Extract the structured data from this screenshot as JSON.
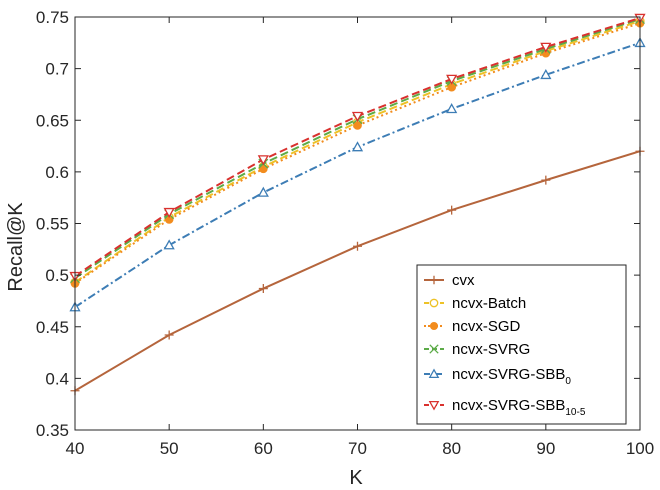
{
  "chart_data": {
    "type": "line",
    "title": "",
    "xlabel": "K",
    "ylabel": "Recall@K",
    "xlim": [
      40,
      100
    ],
    "ylim": [
      0.35,
      0.75
    ],
    "xticks": [
      "40",
      "50",
      "60",
      "70",
      "80",
      "90",
      "100"
    ],
    "yticks": [
      "0.35",
      "0.4",
      "0.45",
      "0.5",
      "0.55",
      "0.6",
      "0.65",
      "0.7",
      "0.75"
    ],
    "x": [
      40,
      50,
      60,
      70,
      80,
      90,
      100
    ],
    "legend_position": "bottom-right",
    "series": [
      {
        "name": "cvx",
        "color": "#B5653C",
        "dash": "solid",
        "marker": "plus",
        "values": [
          0.388,
          0.442,
          0.487,
          0.528,
          0.563,
          0.592,
          0.62
        ]
      },
      {
        "name": "ncvx-Batch",
        "color": "#EDC227",
        "dash": "dashed",
        "marker": "circle",
        "values": [
          0.493,
          0.556,
          0.605,
          0.648,
          0.685,
          0.717,
          0.746
        ]
      },
      {
        "name": "ncvx-SGD",
        "color": "#F28C1E",
        "dash": "dotted",
        "marker": "filled-circle",
        "values": [
          0.492,
          0.554,
          0.603,
          0.645,
          0.682,
          0.715,
          0.744
        ]
      },
      {
        "name": "ncvx-SVRG",
        "color": "#5CAB48",
        "dash": "dashed",
        "marker": "x",
        "values": [
          0.497,
          0.559,
          0.608,
          0.651,
          0.688,
          0.719,
          0.748
        ]
      },
      {
        "name": "ncvx-SVRG-SBB",
        "name_sub": "0",
        "color": "#3D7DB5",
        "dash": "dashdot",
        "marker": "triangle-up",
        "values": [
          0.469,
          0.529,
          0.58,
          0.624,
          0.661,
          0.694,
          0.725
        ]
      },
      {
        "name": "ncvx-SVRG-SBB",
        "name_sub": "10-5",
        "color": "#D9312E",
        "dash": "dashed",
        "marker": "triangle-down",
        "values": [
          0.499,
          0.561,
          0.612,
          0.654,
          0.69,
          0.721,
          0.749
        ]
      }
    ]
  }
}
